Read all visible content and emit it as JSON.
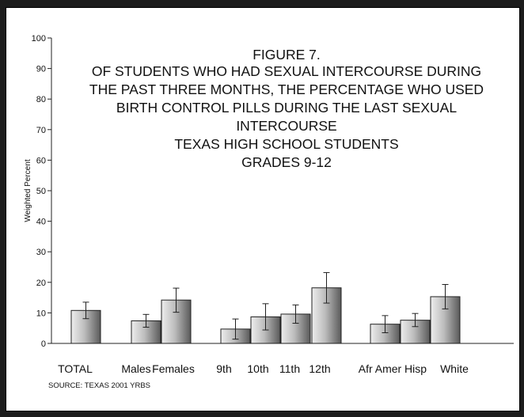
{
  "chart_data": {
    "type": "bar",
    "title_lines": [
      "FIGURE 7.",
      "OF STUDENTS WHO HAD SEXUAL INTERCOURSE DURING",
      "THE PAST THREE MONTHS, THE PERCENTAGE WHO USED",
      "BIRTH CONTROL PILLS DURING THE LAST SEXUAL",
      "INTERCOURSE",
      "TEXAS HIGH  SCHOOL STUDENTS",
      "GRADES 9-12"
    ],
    "ylabel": "Weighted Percent",
    "ylim": [
      0,
      100
    ],
    "yticks": [
      0,
      10,
      20,
      30,
      40,
      50,
      60,
      70,
      80,
      90,
      100
    ],
    "source": "SOURCE: TEXAS 2001 YRBS",
    "categories": [
      "TOTAL",
      "Males",
      "Females",
      "9th",
      "10th",
      "11th",
      "12th",
      "Afr Amer",
      "Hisp",
      "White"
    ],
    "values": [
      10.8,
      7.4,
      14.2,
      4.7,
      8.7,
      9.6,
      18.2,
      6.3,
      7.6,
      15.3
    ],
    "error_low": [
      8.1,
      5.3,
      10.2,
      1.4,
      4.4,
      6.6,
      13.2,
      3.5,
      5.5,
      11.3
    ],
    "error_high": [
      13.5,
      9.5,
      18.1,
      8.0,
      13.0,
      12.6,
      23.2,
      9.1,
      9.8,
      19.3
    ],
    "grid": false,
    "legend": "none"
  }
}
